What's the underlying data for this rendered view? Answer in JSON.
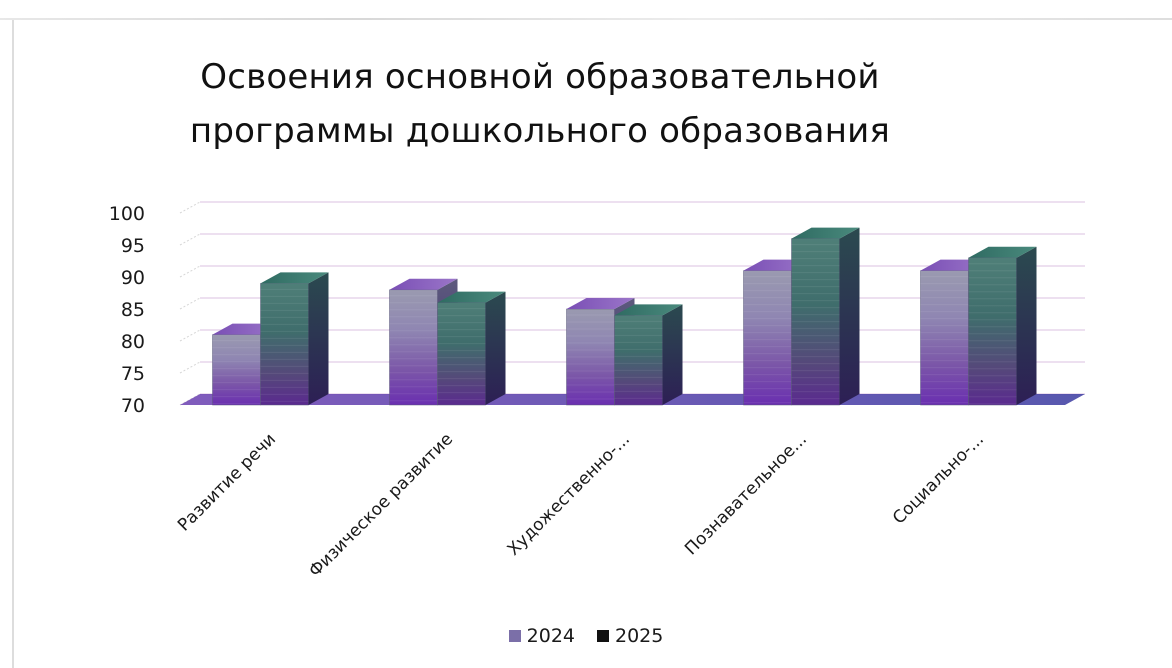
{
  "chart_data": {
    "type": "bar",
    "title_lines": [
      "Освоения основной образовательной",
      "программы дошкольного образования"
    ],
    "categories": [
      "Развитие речи",
      "Физическое развитие",
      "Художественно-...",
      "Познавательное...",
      "Социально-..."
    ],
    "series": [
      {
        "name": "2024",
        "values": [
          81,
          88,
          85,
          91,
          91
        ],
        "color": "#7b6fa8"
      },
      {
        "name": "2025",
        "values": [
          89,
          86,
          84,
          96,
          93
        ],
        "color": "#1f1f1f"
      }
    ],
    "ylim": [
      70,
      100
    ],
    "yticks": [
      "70",
      "75",
      "80",
      "85",
      "90",
      "95",
      "100"
    ],
    "grid": true,
    "legend_position": "bottom",
    "style": "3d-clustered-column"
  }
}
